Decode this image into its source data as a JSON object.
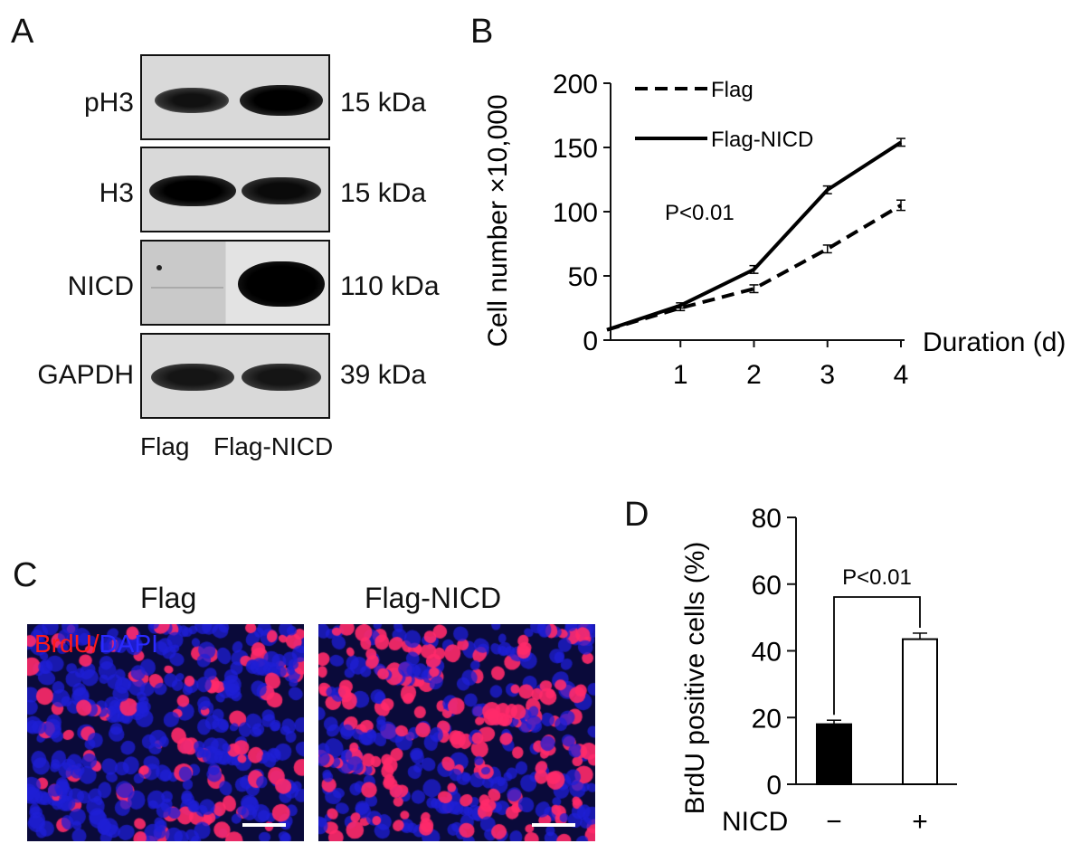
{
  "panels": {
    "a": {
      "letter": "A"
    },
    "b": {
      "letter": "B"
    },
    "c": {
      "letter": "C"
    },
    "d": {
      "letter": "D"
    }
  },
  "western_blot": {
    "rows": [
      {
        "label": "pH3",
        "size": "15 kDa"
      },
      {
        "label": "H3",
        "size": "15 kDa"
      },
      {
        "label": "NICD",
        "size": "110 kDa"
      },
      {
        "label": "GAPDH",
        "size": "39 kDa"
      }
    ],
    "lanes": [
      "Flag",
      "Flag-NICD"
    ]
  },
  "microscopy": {
    "left_title": "Flag",
    "right_title": "Flag-NICD",
    "stain_label_red": "BrdU/",
    "stain_label_blue": "DAPI",
    "colors": {
      "nuclei": "#1f1fd6",
      "brdu": "#ff2a6a",
      "background": "#0a0a3a"
    }
  },
  "chart_data": [
    {
      "type": "line",
      "ylabel": "Cell number ×10,000",
      "xlabel": "Duration (d)",
      "ylim": [
        0,
        200
      ],
      "yticks": [
        0,
        50,
        100,
        150,
        200
      ],
      "xticks": [
        1,
        2,
        3,
        4
      ],
      "annotation": "P<0.01",
      "legend_position": "top-left",
      "series": [
        {
          "name": "Flag",
          "style": "dashed",
          "x": [
            0,
            1,
            2,
            3,
            4
          ],
          "y": [
            8,
            25,
            40,
            71,
            105
          ],
          "err": [
            0,
            2,
            3,
            3,
            4
          ]
        },
        {
          "name": "Flag-NICD",
          "style": "solid",
          "x": [
            0,
            1,
            2,
            3,
            4
          ],
          "y": [
            8,
            27,
            55,
            117,
            154
          ],
          "err": [
            0,
            2,
            3,
            3,
            3
          ]
        }
      ]
    },
    {
      "type": "bar",
      "ylabel": "BrdU positive cells  (%)",
      "xlabel": "NICD",
      "categories": [
        "−",
        "+"
      ],
      "values": [
        18,
        43.5
      ],
      "err": [
        1.2,
        1.8
      ],
      "ylim": [
        0,
        80
      ],
      "yticks": [
        0,
        20,
        40,
        60,
        80
      ],
      "annotation": "P<0.01",
      "colors": [
        "#000000",
        "#ffffff"
      ]
    }
  ]
}
